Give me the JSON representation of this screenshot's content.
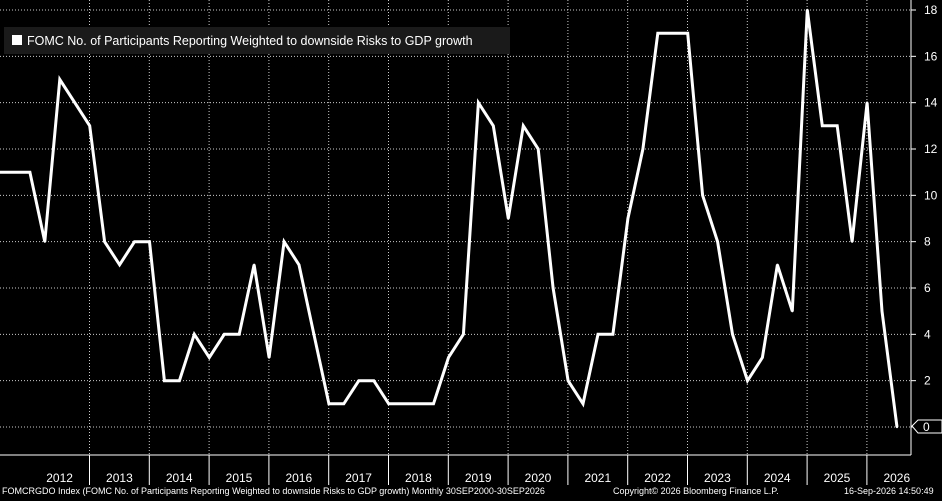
{
  "chart_data": {
    "type": "line",
    "legend": "FOMC No. of Participants Reporting Weighted to downside Risks to GDP growth",
    "legend_position": "top-left",
    "colors": {
      "background": "#000000",
      "line": "#ffffff",
      "grid": "#ffffff"
    },
    "grid": true,
    "y_axis_side": "right",
    "ylim": [
      0,
      18
    ],
    "yticks": [
      0,
      2,
      4,
      6,
      8,
      10,
      12,
      14,
      16,
      18
    ],
    "last_value_label": "0",
    "x_tick_labels": [
      "2012",
      "2013",
      "2014",
      "2015",
      "2016",
      "2017",
      "2018",
      "2019",
      "2020",
      "2021",
      "2022",
      "2023",
      "2024",
      "2025",
      "2026"
    ],
    "series": [
      {
        "values": [
          11,
          11,
          11,
          8,
          15,
          14,
          13,
          8,
          7,
          8,
          8,
          2,
          2,
          4,
          3,
          4,
          4,
          7,
          3,
          8,
          7,
          4,
          1,
          1,
          2,
          2,
          1,
          1,
          1,
          1,
          3,
          4,
          14,
          13,
          9,
          13,
          12,
          6,
          2,
          1,
          4,
          4,
          9,
          12,
          17,
          17,
          17,
          10,
          8,
          4,
          2,
          3,
          7,
          5,
          18,
          13,
          13,
          8,
          14,
          5,
          0
        ]
      }
    ]
  },
  "footer": {
    "left": "FOMCRGDO Index (FOMC No. of Participants Reporting Weighted to downside Risks to GDP growth) Monthly 30SEP2000-30SEP2026",
    "middle": "Copyright© 2026 Bloomberg Finance L.P.",
    "right": "16-Sep-2026 14:50:49"
  }
}
